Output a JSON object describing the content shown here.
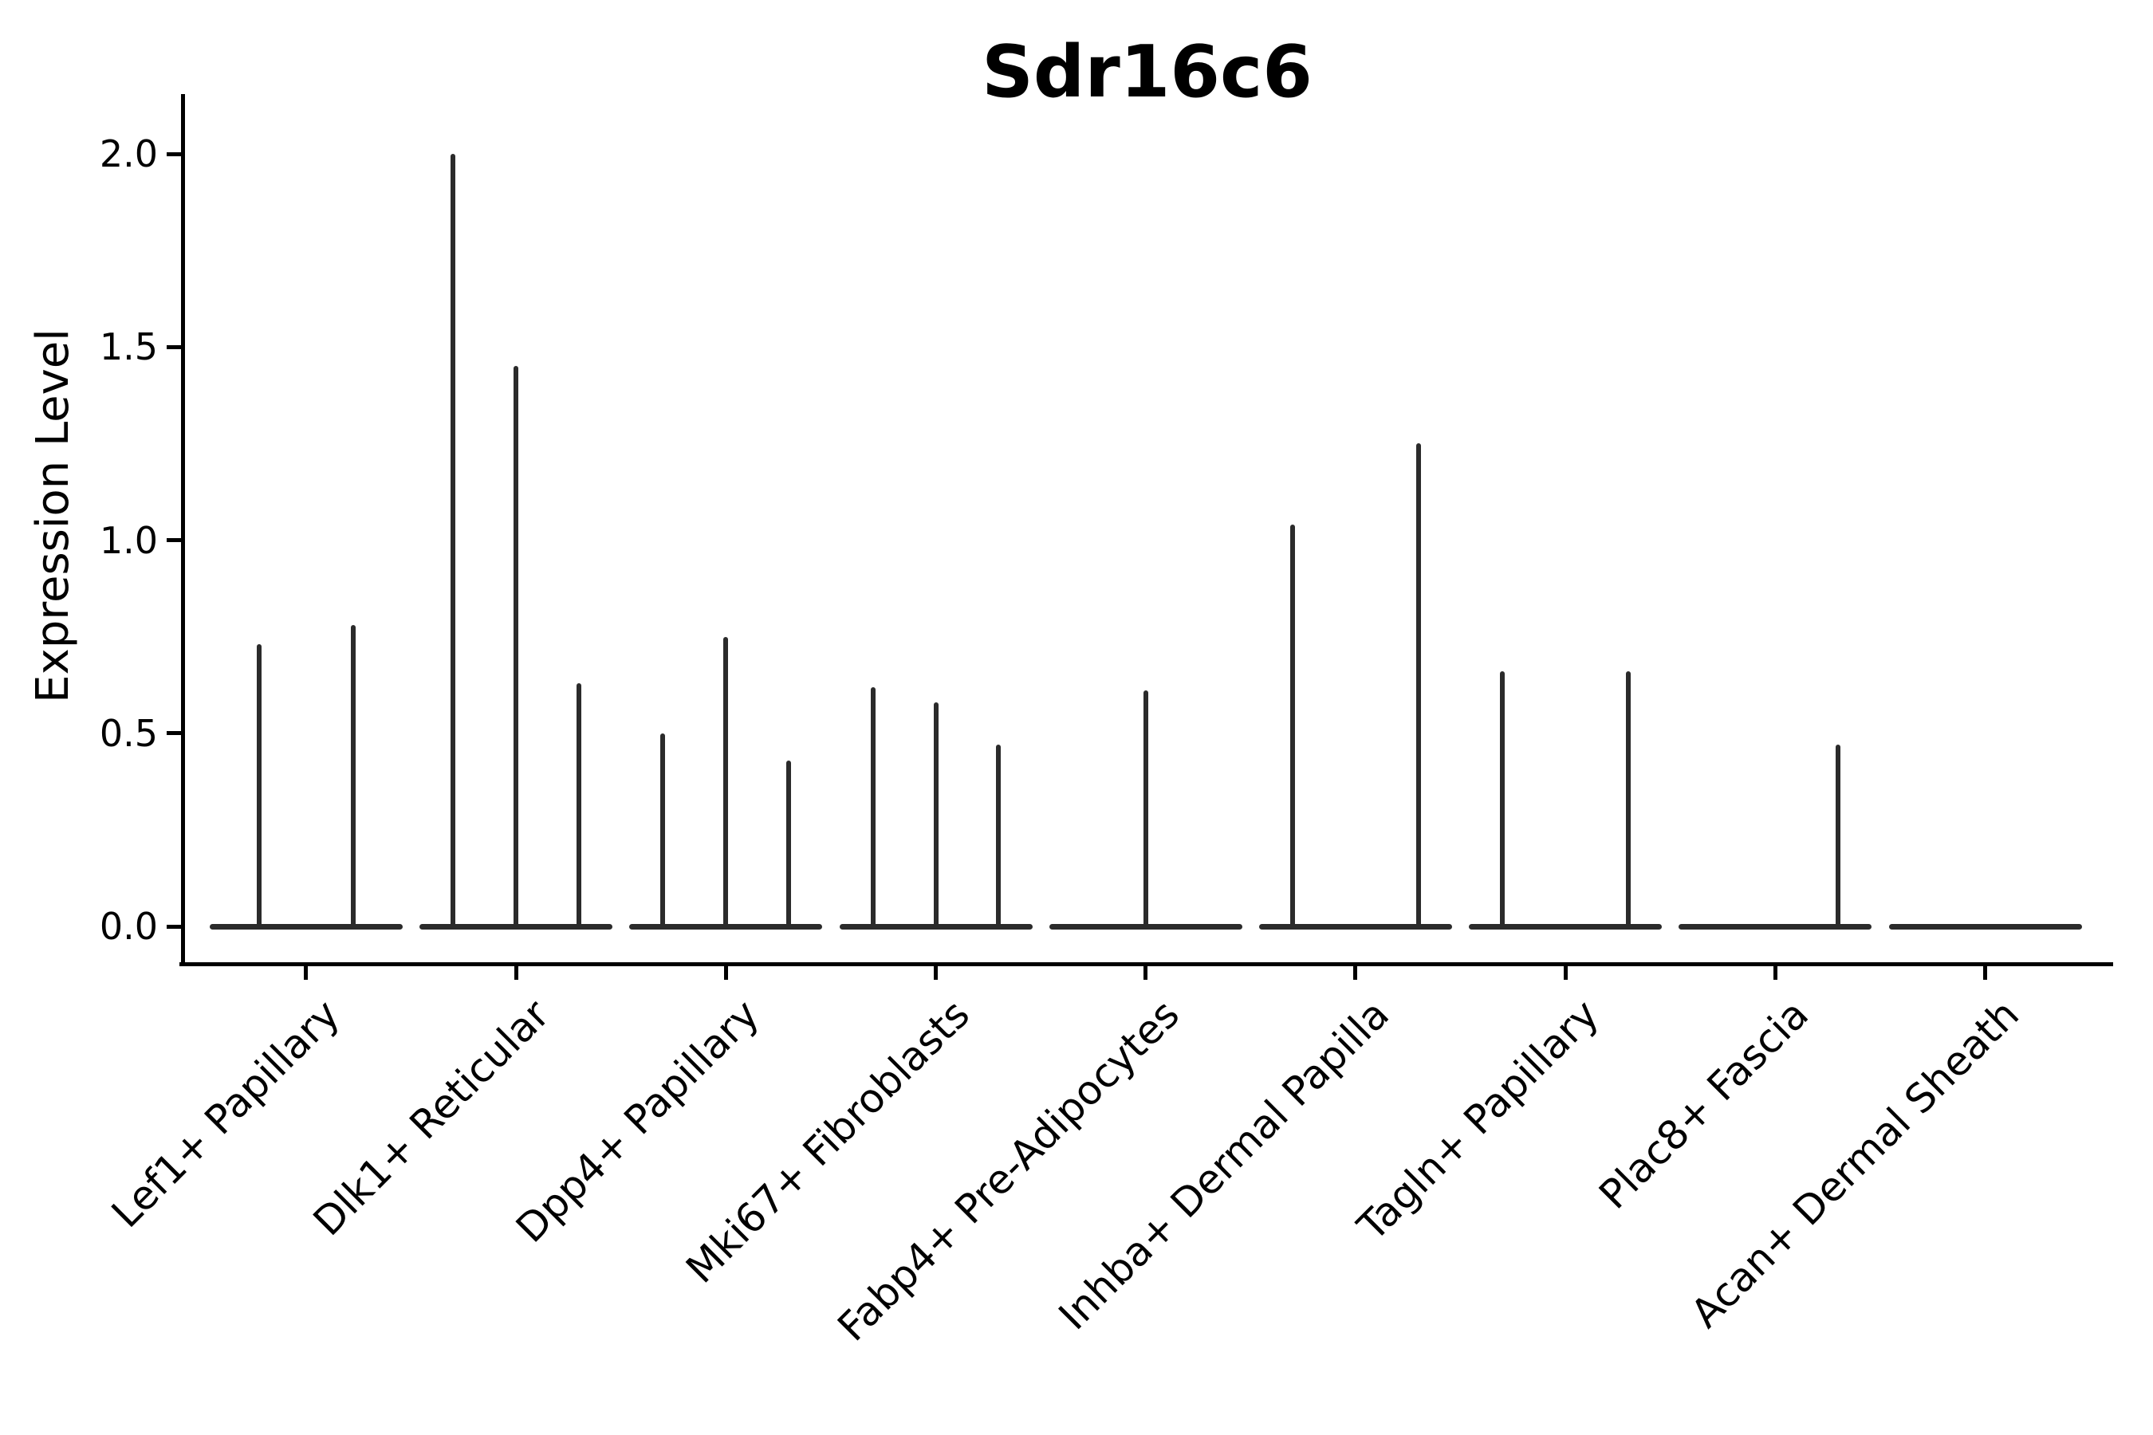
{
  "title": "Sdr16c6",
  "y_axis_label": "Expression Level",
  "colors": {
    "axis": "#000000",
    "violin_line": "#2b2b2b",
    "background": "#ffffff"
  },
  "chart_data": {
    "type": "violin",
    "title": "Sdr16c6",
    "xlabel": "",
    "ylabel": "Expression Level",
    "ylim": [
      -0.1,
      2.15
    ],
    "yticks": [
      0.0,
      0.5,
      1.0,
      1.5,
      2.0
    ],
    "grid": false,
    "legend": false,
    "note": "Collapsed violins: each violin is a flat baseline at expression 0 with a thin central spike rising to the maximum expression value; pos is the violin offset within the category in category-width units",
    "categories": [
      {
        "label": "Lef1+ Papillary",
        "violins": [
          {
            "pos": -0.225,
            "max": 0.73
          },
          {
            "pos": 0.225,
            "max": 0.78
          }
        ]
      },
      {
        "label": "Dlk1+ Reticular",
        "violins": [
          {
            "pos": -0.3,
            "max": 2.0
          },
          {
            "pos": 0.0,
            "max": 1.45
          },
          {
            "pos": 0.3,
            "max": 0.63
          }
        ]
      },
      {
        "label": "Dpp4+ Papillary",
        "violins": [
          {
            "pos": -0.3,
            "max": 0.5
          },
          {
            "pos": 0.0,
            "max": 0.75
          },
          {
            "pos": 0.3,
            "max": 0.43
          }
        ]
      },
      {
        "label": "Mki67+ Fibroblasts",
        "violins": [
          {
            "pos": -0.3,
            "max": 0.62
          },
          {
            "pos": 0.0,
            "max": 0.58
          },
          {
            "pos": 0.3,
            "max": 0.47
          }
        ]
      },
      {
        "label": "Fabp4+ Pre-Adipocytes",
        "violins": [
          {
            "pos": 0.0,
            "max": 0.61
          }
        ]
      },
      {
        "label": "Inhba+ Dermal Papilla",
        "violins": [
          {
            "pos": -0.3,
            "max": 1.04
          },
          {
            "pos": 0.3,
            "max": 1.25
          }
        ]
      },
      {
        "label": "Tagln+ Papillary",
        "violins": [
          {
            "pos": -0.3,
            "max": 0.66
          },
          {
            "pos": 0.3,
            "max": 0.66
          }
        ]
      },
      {
        "label": "Plac8+ Fascia",
        "violins": [
          {
            "pos": 0.3,
            "max": 0.47
          }
        ]
      },
      {
        "label": "Acan+ Dermal Sheath",
        "violins": []
      }
    ]
  }
}
